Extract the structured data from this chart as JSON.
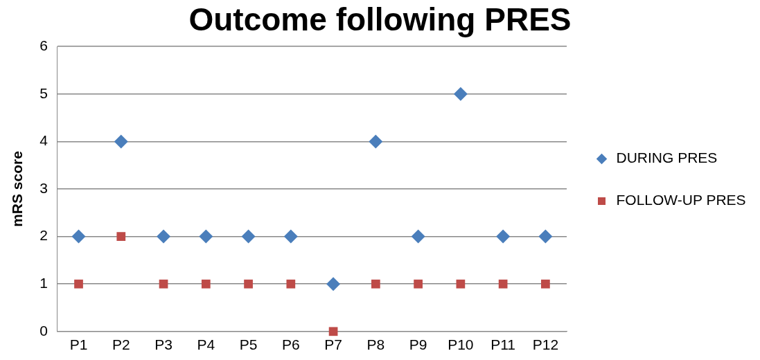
{
  "chart_data": {
    "type": "scatter",
    "title": "Outcome following PRES",
    "ylabel": "mRS score",
    "categories": [
      "P1",
      "P2",
      "P3",
      "P4",
      "P5",
      "P6",
      "P7",
      "P8",
      "P9",
      "P10",
      "P11",
      "P12"
    ],
    "series": [
      {
        "name": "DURING PRES",
        "color": "#4a7ebb",
        "marker": "diamond",
        "values": [
          2,
          4,
          2,
          2,
          2,
          2,
          1,
          4,
          2,
          5,
          2,
          2
        ]
      },
      {
        "name": "FOLLOW-UP PRES",
        "color": "#be4b48",
        "marker": "square",
        "values": [
          1,
          2,
          1,
          1,
          1,
          1,
          0,
          1,
          1,
          1,
          1,
          1
        ]
      }
    ],
    "ylim": [
      0,
      6
    ],
    "yticks": [
      0,
      1,
      2,
      3,
      4,
      5,
      6
    ],
    "grid": "y",
    "legend": "right"
  }
}
